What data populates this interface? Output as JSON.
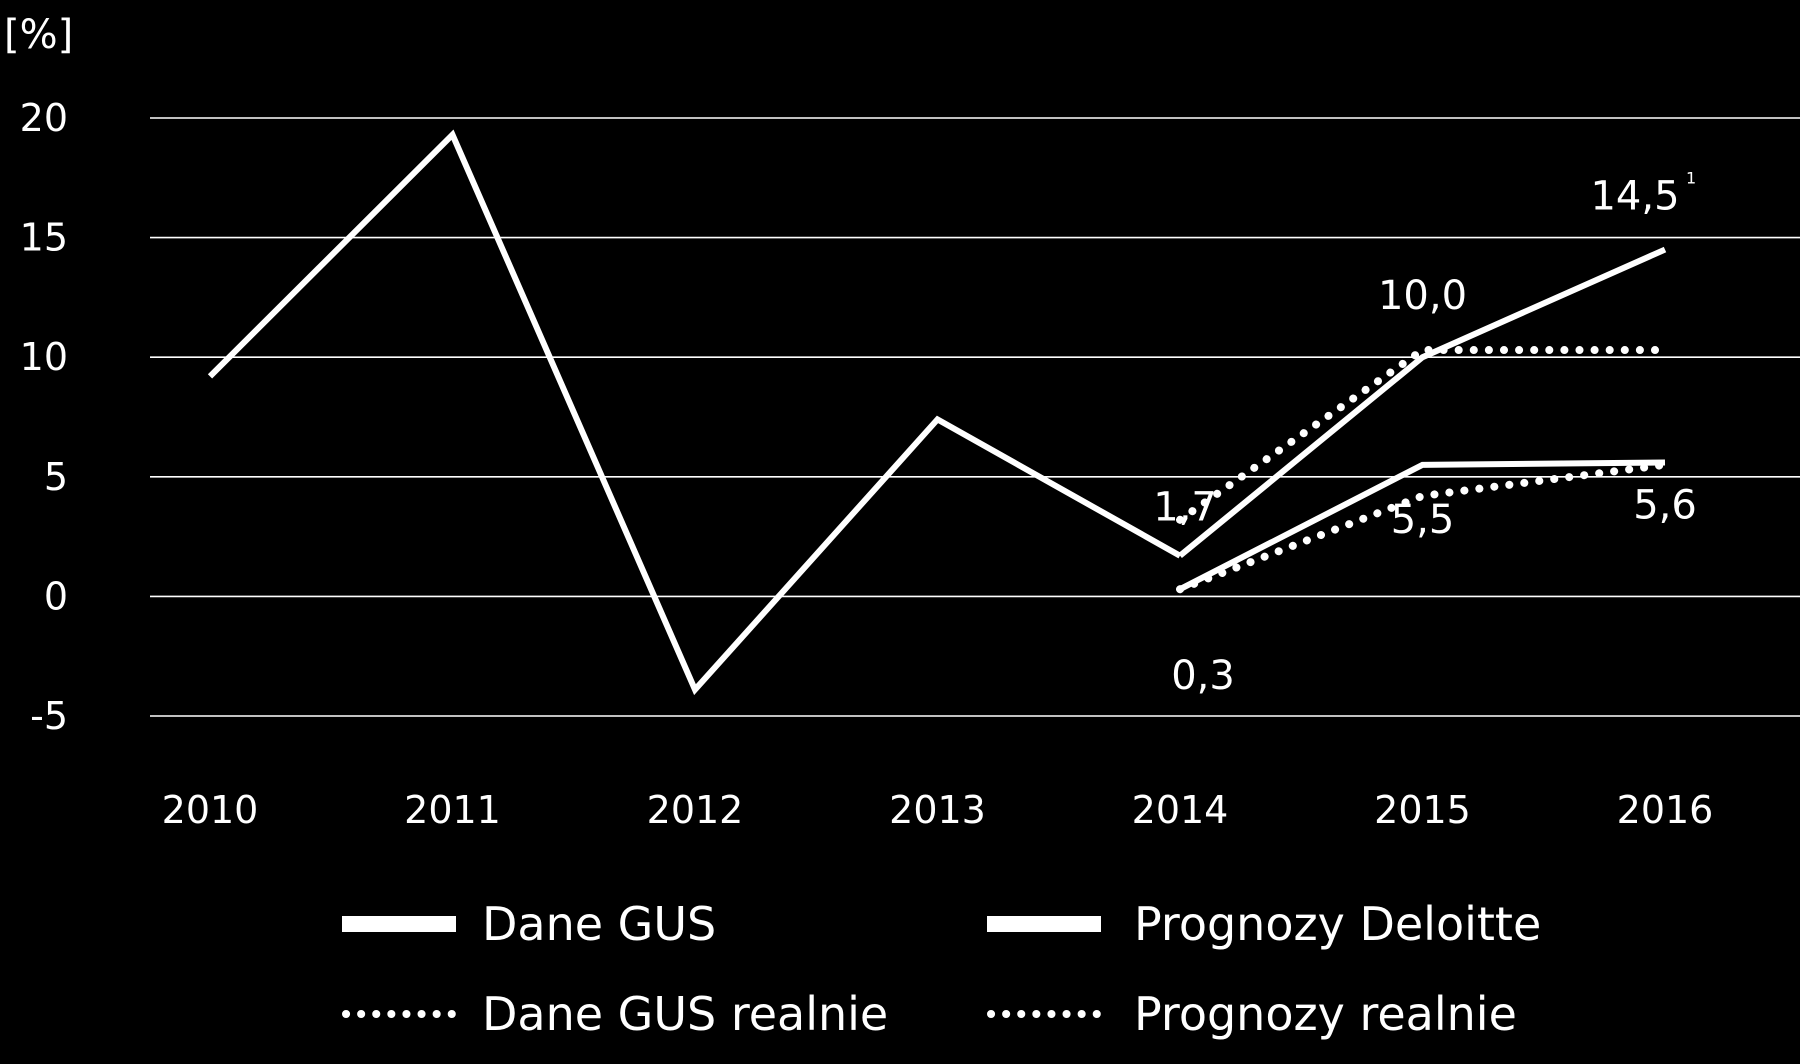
{
  "chart_data": {
    "type": "line",
    "y_unit": "[%]",
    "ylim": [
      -5,
      20
    ],
    "y_ticks": [
      "20",
      "15",
      "10",
      "5",
      "0",
      "-5"
    ],
    "y_tick_values": [
      20,
      15,
      10,
      5,
      0,
      -5
    ],
    "categories": [
      "2010",
      "2011",
      "2012",
      "2013",
      "2014",
      "2015",
      "2016"
    ],
    "grid": true,
    "legend_position": "bottom",
    "series": [
      {
        "name": "Dane GUS",
        "style": "solid",
        "points": [
          {
            "x": "2010",
            "y": 9.2
          },
          {
            "x": "2011",
            "y": 19.3
          },
          {
            "x": "2012",
            "y": -3.9
          },
          {
            "x": "2013",
            "y": 7.4
          },
          {
            "x": "2014",
            "y": 1.7
          }
        ]
      },
      {
        "name": "Prognozy Deloitte",
        "style": "solid",
        "points": [
          {
            "x": "2014",
            "y": 1.7
          },
          {
            "x": "2015",
            "y": 10.0
          },
          {
            "x": "2016",
            "y": 14.5
          }
        ]
      },
      {
        "name": "Prognozy Deloitte",
        "style": "solid",
        "points": [
          {
            "x": "2014",
            "y": 0.3
          },
          {
            "x": "2015",
            "y": 5.5
          },
          {
            "x": "2016",
            "y": 5.6
          }
        ]
      },
      {
        "name": "Dane GUS realnie",
        "style": "dotted",
        "points": [
          {
            "x": "2014",
            "y": 3.2
          },
          {
            "x": "2015",
            "y": 10.3
          },
          {
            "x": "2016",
            "y": 10.3
          }
        ]
      },
      {
        "name": "Prognozy realnie",
        "style": "dotted",
        "points": [
          {
            "x": "2014",
            "y": 0.3
          },
          {
            "x": "2015",
            "y": 4.2
          },
          {
            "x": "2016",
            "y": 5.5
          }
        ]
      }
    ],
    "data_labels": [
      {
        "text": "14,5",
        "sup": "1",
        "x": "2016",
        "y": 14.5
      },
      {
        "text": "10,0",
        "x": "2015",
        "y": 10.0
      },
      {
        "text": "1,7",
        "x": "2014",
        "y": 1.7
      },
      {
        "text": "5,5",
        "x": "2015",
        "y": 5.5
      },
      {
        "text": "5,6",
        "x": "2016",
        "y": 5.6
      },
      {
        "text": "0,3",
        "x": "2014",
        "y": 0.3
      }
    ],
    "legend": [
      {
        "label": "Dane GUS",
        "style": "solid"
      },
      {
        "label": "Prognozy Deloitte",
        "style": "solid"
      },
      {
        "label": "Dane GUS realnie",
        "style": "dotted"
      },
      {
        "label": "Prognozy realnie",
        "style": "dotted"
      }
    ]
  },
  "colors": {
    "background": "#000000",
    "foreground": "#ffffff"
  }
}
